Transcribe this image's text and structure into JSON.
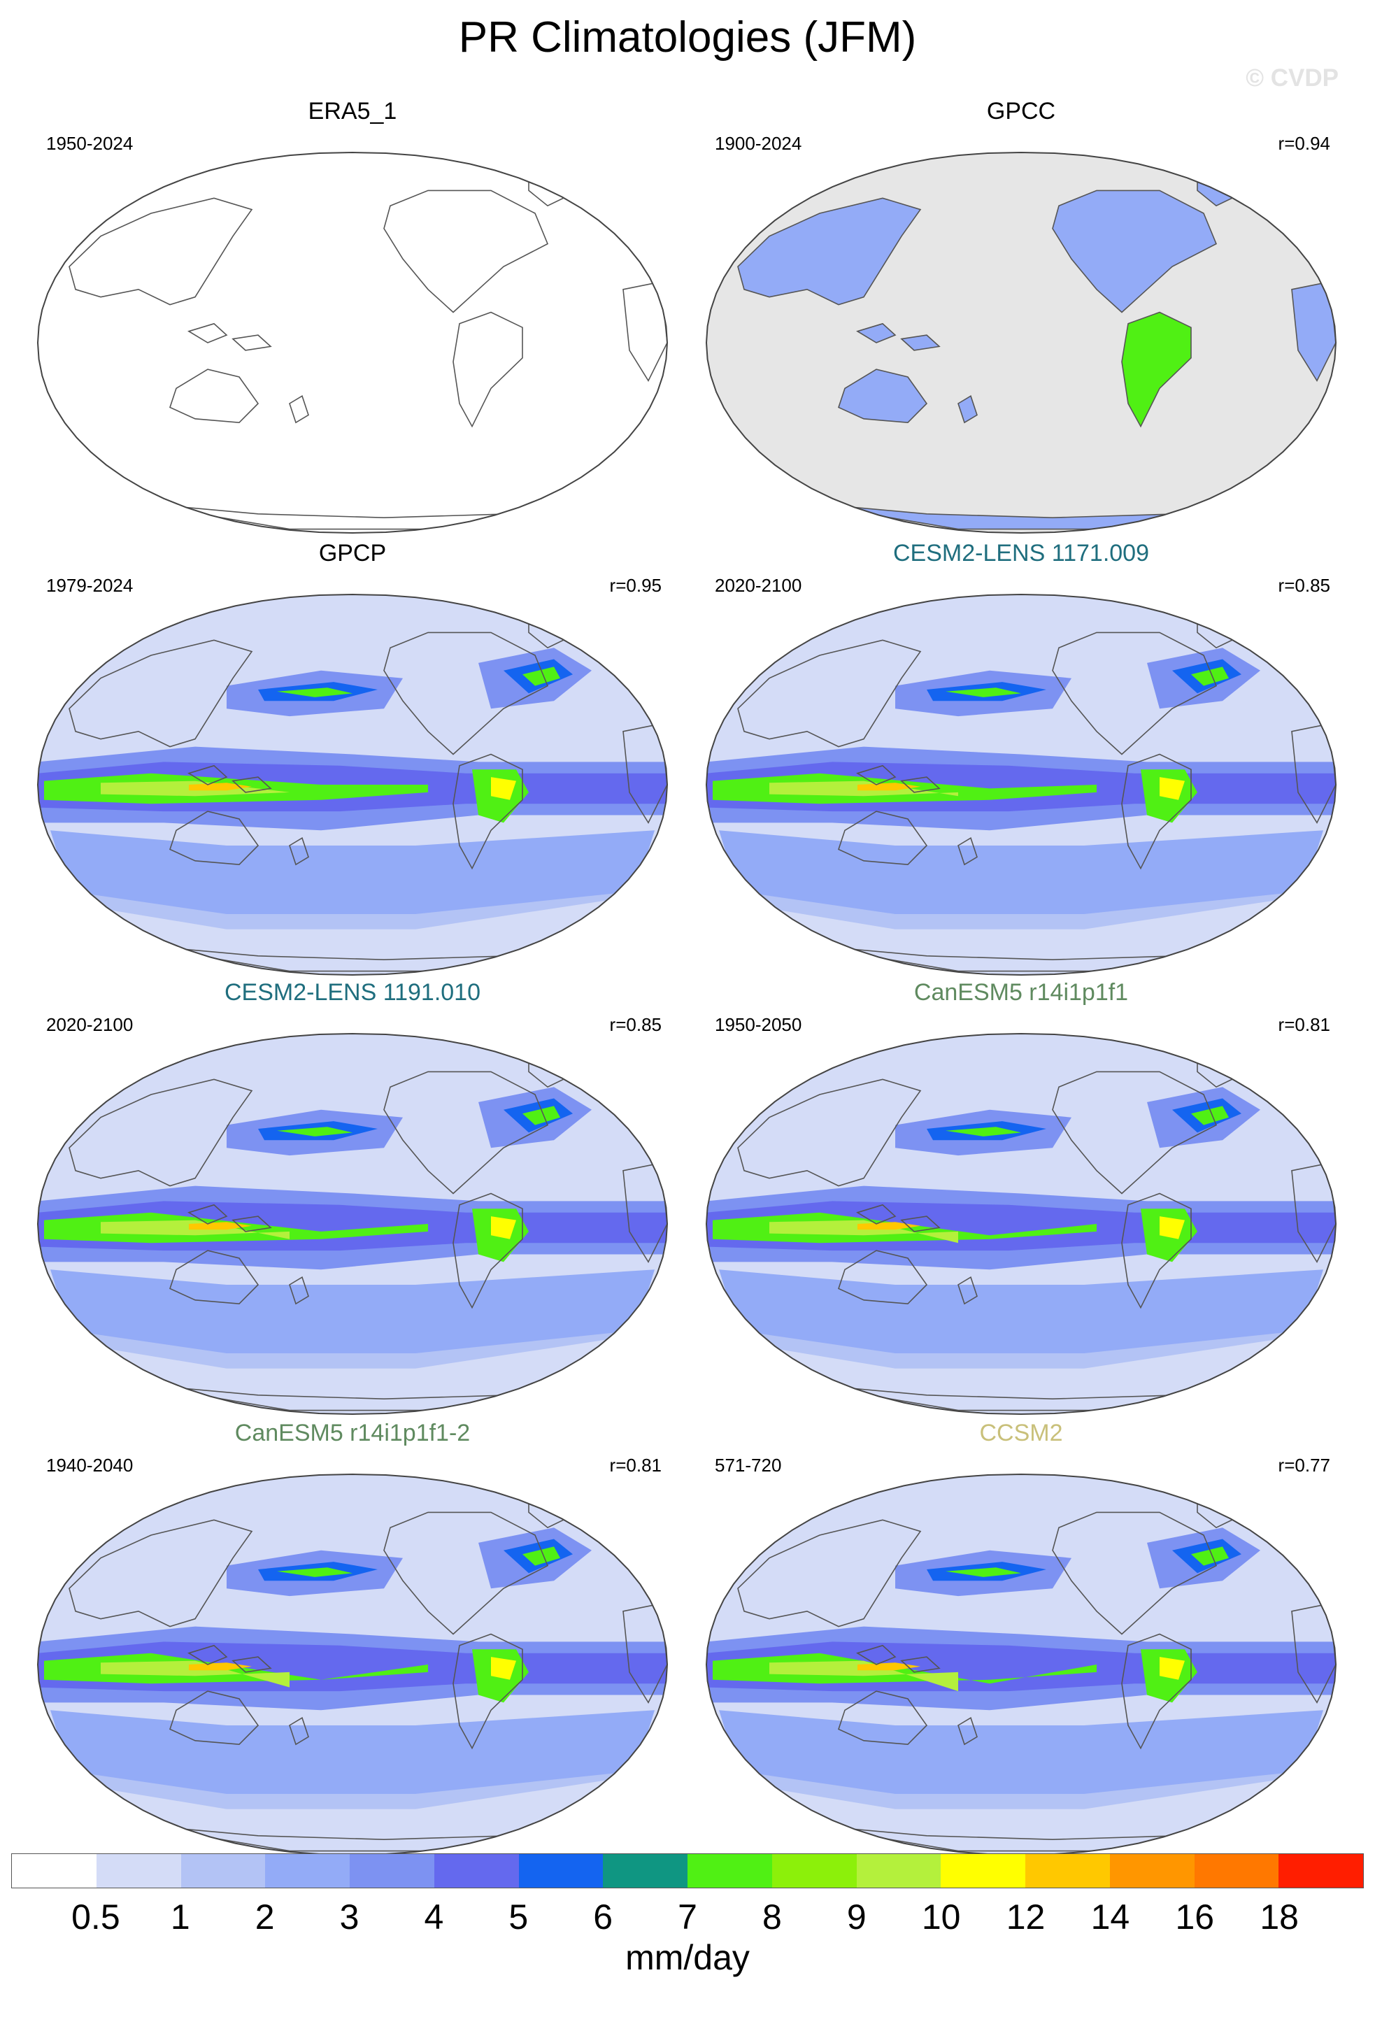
{
  "figure": {
    "title": "PR Climatologies (JFM)",
    "watermark": "© CVDP",
    "units": "mm/day"
  },
  "panels": [
    {
      "name": "ERA5_1",
      "years": "1950-2024",
      "corr": "",
      "title_color": "#000000",
      "field": "none"
    },
    {
      "name": "GPCC",
      "years": "1900-2024",
      "corr": "r=0.94",
      "title_color": "#000000",
      "field": "land"
    },
    {
      "name": "GPCP",
      "years": "1979-2024",
      "corr": "r=0.95",
      "title_color": "#000000",
      "field": "full"
    },
    {
      "name": "CESM2-LENS 1171.009",
      "years": "2020-2100",
      "corr": "r=0.85",
      "title_color": "#1f6e7e",
      "field": "full"
    },
    {
      "name": "CESM2-LENS 1191.010",
      "years": "2020-2100",
      "corr": "r=0.85",
      "title_color": "#1f6e7e",
      "field": "full"
    },
    {
      "name": "CanESM5 r14i1p1f1",
      "years": "1950-2050",
      "corr": "r=0.81",
      "title_color": "#5f8a5f",
      "field": "full"
    },
    {
      "name": "CanESM5 r14i1p1f1-2",
      "years": "1940-2040",
      "corr": "r=0.81",
      "title_color": "#5f8a5f",
      "field": "full"
    },
    {
      "name": "CCSM2",
      "years": "571-720",
      "corr": "r=0.77",
      "title_color": "#c9c07a",
      "field": "full"
    }
  ],
  "colorbar": {
    "labels": [
      "0.5",
      "1",
      "2",
      "3",
      "4",
      "5",
      "6",
      "7",
      "8",
      "9",
      "10",
      "12",
      "14",
      "16",
      "18"
    ],
    "colors": [
      "#ffffff",
      "#d4dcf7",
      "#b3c3f5",
      "#93abf7",
      "#7d92f2",
      "#6469ee",
      "#1464f0",
      "#0f9682",
      "#50f014",
      "#8cf00a",
      "#b4f03c",
      "#ffff00",
      "#ffc800",
      "#ff9600",
      "#ff7800",
      "#ff1e00"
    ]
  },
  "colors": {
    "missing": "#e6e6e6",
    "coast": "#555555",
    "map_border": "#444444"
  }
}
